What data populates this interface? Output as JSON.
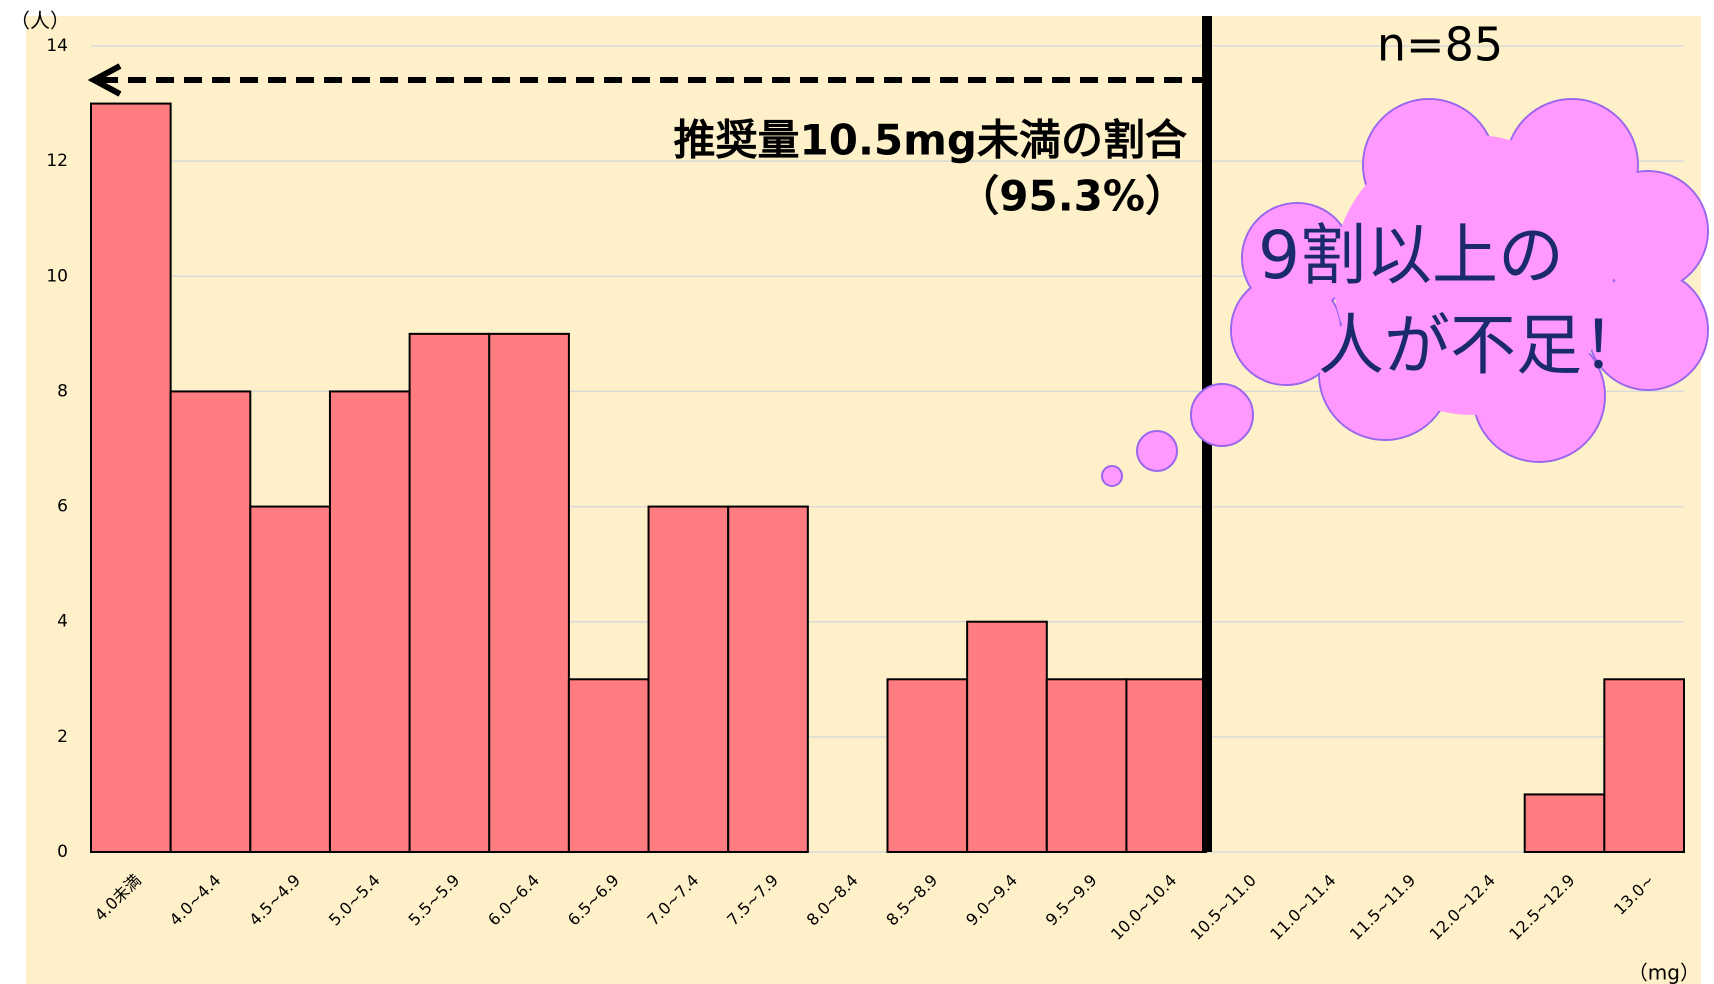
{
  "chart_data": {
    "type": "bar",
    "categories": [
      "4.0未満",
      "4.0~4.4",
      "4.5~4.9",
      "5.0~5.4",
      "5.5~5.9",
      "6.0~6.4",
      "6.5~6.9",
      "7.0~7.4",
      "7.5~7.9",
      "8.0~8.4",
      "8.5~8.9",
      "9.0~9.4",
      "9.5~9.9",
      "10.0~10.4",
      "10.5~11.0",
      "11.0~11.4",
      "11.5~11.9",
      "12.0~12.4",
      "12.5~12.9",
      "13.0~"
    ],
    "values": [
      13,
      8,
      6,
      8,
      9,
      9,
      3,
      6,
      6,
      0,
      3,
      4,
      3,
      3,
      0,
      0,
      0,
      0,
      1,
      3
    ],
    "color": "#ff7c80",
    "ylim": [
      0,
      14
    ],
    "yticks": [
      0,
      2,
      4,
      6,
      8,
      10,
      12,
      14
    ],
    "grid": true,
    "y_label": "（人）",
    "x_label": "（mg）",
    "annotations": {
      "n": "n=85",
      "ratio": "推奨量10.5mg未満の割合",
      "percent": "（95.3%）",
      "cloud_line1": "9割以上の",
      "cloud_line2": "人が不足！"
    }
  }
}
